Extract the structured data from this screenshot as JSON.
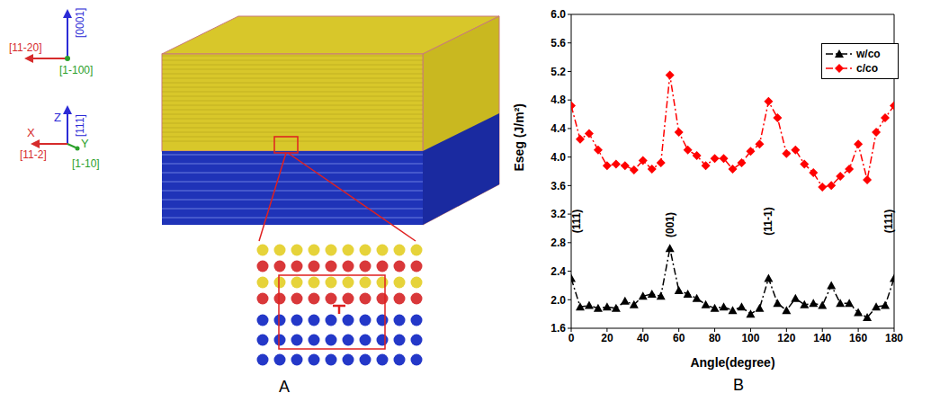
{
  "diagram": {
    "panel_label": "A",
    "hexagonal_axes": {
      "up": "[0001]",
      "left": "[11-20]",
      "out": "[1-100]"
    },
    "cubic_axes": {
      "z": "Z",
      "z_dir": "[111]",
      "x": "X",
      "x_dir": "[11-2]",
      "y": "Y",
      "y_dir": "[1-10]"
    }
  },
  "chart_data": {
    "type": "line",
    "panel_label": "B",
    "x_label": "Angle(degree)",
    "y_label": "Eseg (J/m²)",
    "x": [
      0,
      5,
      10,
      15,
      20,
      25,
      30,
      35,
      40,
      45,
      50,
      55,
      60,
      65,
      70,
      75,
      80,
      85,
      90,
      95,
      100,
      105,
      110,
      115,
      120,
      125,
      130,
      135,
      140,
      145,
      150,
      155,
      160,
      165,
      170,
      175,
      180
    ],
    "series": [
      {
        "name": "w/co",
        "color": "#000000",
        "marker": "triangle",
        "line_style": "dashdot",
        "values": [
          2.3,
          1.9,
          1.92,
          1.88,
          1.9,
          1.88,
          1.98,
          1.93,
          2.05,
          2.08,
          2.05,
          2.72,
          2.13,
          2.08,
          2.02,
          1.93,
          1.88,
          1.9,
          1.85,
          1.9,
          1.8,
          1.88,
          2.3,
          1.95,
          1.85,
          2.02,
          1.93,
          1.95,
          1.92,
          2.2,
          1.95,
          1.95,
          1.82,
          1.75,
          1.9,
          1.92,
          2.3
        ]
      },
      {
        "name": "c/co",
        "color": "#ff0000",
        "marker": "diamond",
        "line_style": "dashdot",
        "values": [
          4.72,
          4.25,
          4.33,
          4.1,
          3.88,
          3.9,
          3.88,
          3.82,
          3.95,
          3.83,
          3.92,
          5.15,
          4.35,
          4.1,
          4.02,
          3.88,
          3.98,
          3.98,
          3.83,
          3.92,
          4.08,
          4.18,
          4.78,
          4.55,
          4.05,
          4.1,
          3.9,
          3.78,
          3.58,
          3.6,
          3.73,
          3.83,
          4.18,
          3.68,
          4.35,
          4.55,
          4.72
        ]
      }
    ],
    "xlim": [
      0,
      180
    ],
    "xticks": [
      0,
      20,
      40,
      60,
      80,
      100,
      120,
      140,
      160,
      180
    ],
    "ylim": [
      1.6,
      6.0
    ],
    "yticks": [
      1.6,
      {
        "value": 2,
        "label": "2.0"
      },
      2.4,
      2.8,
      3.2,
      3.6,
      {
        "value": 4,
        "label": "4.0"
      },
      4.4,
      4.8,
      5.2,
      5.6,
      {
        "value": 6,
        "label": "6.0"
      }
    ],
    "legend": "top-right",
    "grid": false,
    "annotations": [
      {
        "text": "(111)",
        "x": 3,
        "y": 3.1
      },
      {
        "text": "(001)",
        "x": 55,
        "y": 3.05
      },
      {
        "text": "(11-1)",
        "x": 110,
        "y": 3.1
      },
      {
        "text": "(111)",
        "x": 177,
        "y": 3.1
      }
    ]
  }
}
